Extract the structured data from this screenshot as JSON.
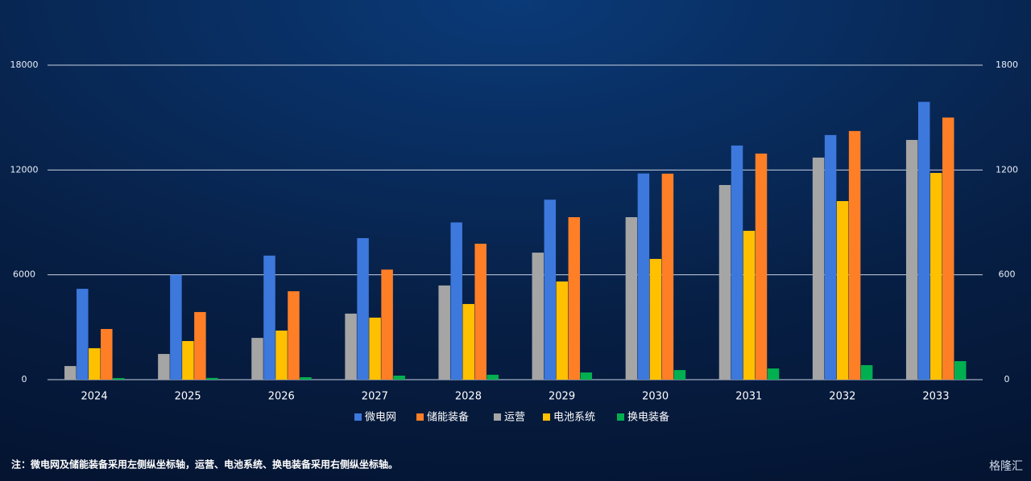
{
  "chart_data": {
    "type": "bar",
    "categories": [
      "2024",
      "2025",
      "2026",
      "2027",
      "2028",
      "2029",
      "2030",
      "2031",
      "2032",
      "2033"
    ],
    "series": [
      {
        "name": "微电网",
        "color": "#3d78dc",
        "values": [
          5200,
          6000,
          7100,
          8100,
          9000,
          10300,
          11800,
          13400,
          14000,
          15900
        ]
      },
      {
        "name": "储能装备",
        "color": "#ff7f27",
        "values": [
          2900,
          3870,
          5060,
          6300,
          7780,
          9300,
          11790,
          12940,
          14230,
          15000
        ]
      },
      {
        "name": "运营",
        "color": "#a5a5a5",
        "axis": "y2",
        "values": [
          78,
          147,
          239,
          378,
          539,
          727,
          930,
          1114,
          1271,
          1372
        ]
      },
      {
        "name": "电池系统",
        "color": "#ffc000",
        "axis": "y2",
        "values": [
          180,
          221,
          281,
          355,
          433,
          562,
          691,
          852,
          1022,
          1183
        ]
      },
      {
        "name": "换电装备",
        "color": "#00b050",
        "axis": "y2",
        "values": [
          9,
          10,
          14,
          23,
          28,
          41,
          55,
          64,
          83,
          106
        ]
      }
    ],
    "ylim": [
      0,
      18000
    ],
    "yticks": [
      0,
      6000,
      12000,
      18000
    ],
    "y2lim": [
      0,
      1800
    ],
    "y2ticks": [
      0,
      600,
      1200,
      1800
    ],
    "grid": true,
    "legend": "bottom",
    "note": "注：微电网及储能装备采用左侧纵坐标轴，运营、电池系统、换电装备采用右侧纵坐标轴。",
    "watermark": "格隆汇"
  }
}
